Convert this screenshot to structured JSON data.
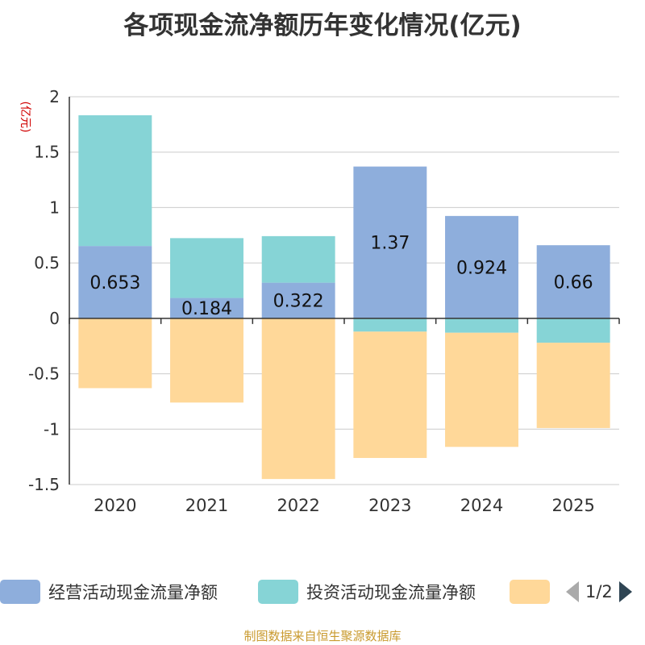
{
  "chart_data": {
    "type": "bar",
    "stacked": true,
    "title": "各项现金流净额历年变化情况(亿元)",
    "ylabel": "(亿元)",
    "categories": [
      "2020",
      "2021",
      "2022",
      "2023",
      "2024",
      "2025"
    ],
    "ylim": [
      -1.5,
      2
    ],
    "yticks": [
      "2",
      "1.5",
      "1",
      "0.5",
      "0",
      "-0.5",
      "-1",
      "-1.5"
    ],
    "ytick_values": [
      2,
      1.5,
      1,
      0.5,
      0,
      -0.5,
      -1,
      -1.5
    ],
    "grid": true,
    "series": [
      {
        "name": "经营活动现金流量净额",
        "color": "#8eaedc",
        "values": [
          0.653,
          0.184,
          0.322,
          1.37,
          0.924,
          0.66
        ],
        "labels": [
          "0.653",
          "0.184",
          "0.322",
          "1.37",
          "0.924",
          "0.66"
        ]
      },
      {
        "name": "投资活动现金流量净额",
        "color": "#86d4d6",
        "values": [
          1.18,
          0.54,
          0.42,
          -0.12,
          -0.13,
          -0.22
        ]
      },
      {
        "name": "",
        "color": "#ffd899",
        "values": [
          -0.63,
          -0.76,
          -1.45,
          -1.14,
          -1.03,
          -0.77
        ]
      }
    ]
  },
  "legend": {
    "page": "1/2",
    "items": [
      {
        "label": "经营活动现金流量净额",
        "color": "#8eaedc"
      },
      {
        "label": "投资活动现金流量净额",
        "color": "#86d4d6"
      },
      {
        "label": "",
        "color": "#ffd899"
      }
    ]
  },
  "footer": {
    "source": "制图数据来自恒生聚源数据库",
    "color": "#c99a2e"
  },
  "colors": {
    "ylabel": "#d00000",
    "text": "#333333",
    "grid": "#cccccc",
    "pager_prev": "#aaaaaa",
    "pager_next": "#2f4554"
  }
}
